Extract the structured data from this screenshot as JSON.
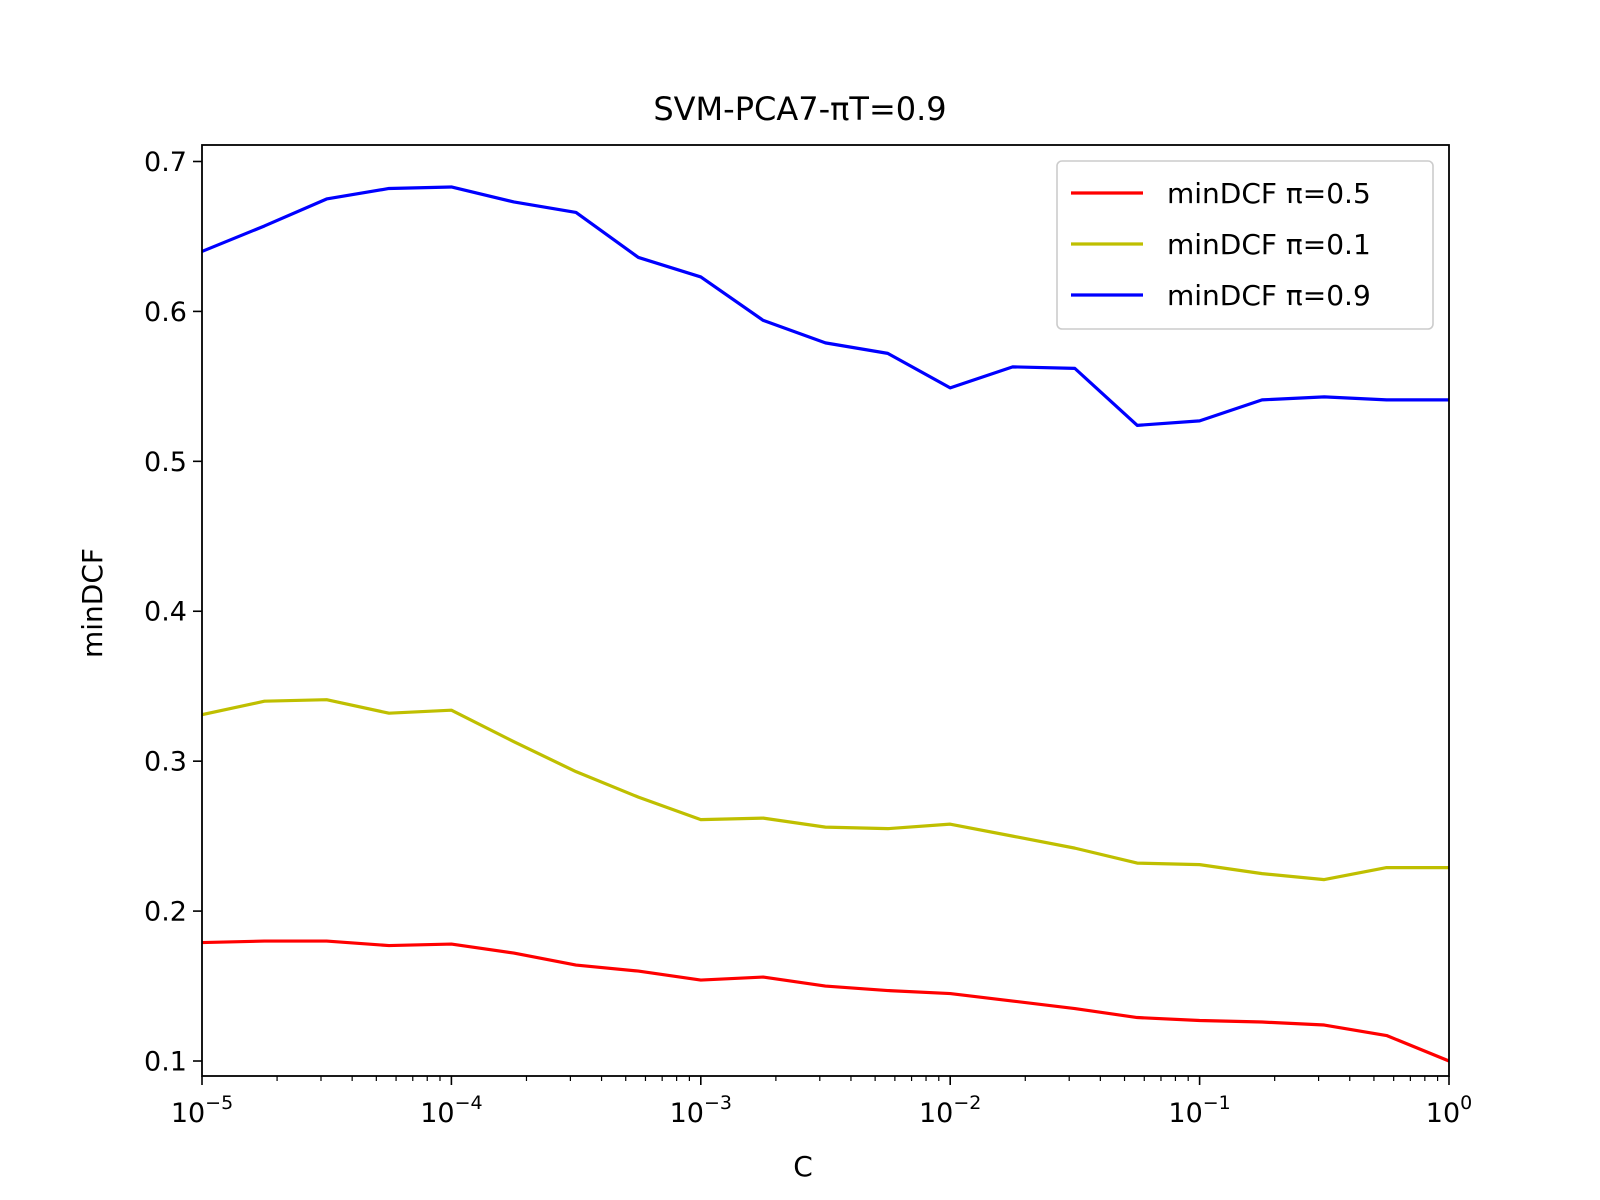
{
  "chart_data": {
    "type": "line",
    "title": "SVM-PCA7-πT=0.9",
    "xlabel": "C",
    "ylabel": "minDCF",
    "xscale": "log",
    "xlim": [
      1e-05,
      1
    ],
    "ylim": [
      0.09,
      0.711
    ],
    "x": [
      1e-05,
      1.78e-05,
      3.16e-05,
      5.62e-05,
      0.0001,
      0.000178,
      0.000316,
      0.000562,
      0.001,
      0.00178,
      0.00316,
      0.00562,
      0.01,
      0.0178,
      0.0316,
      0.0562,
      0.1,
      0.178,
      0.316,
      0.562,
      1
    ],
    "x_tick_labels": [
      {
        "base": "10",
        "exp": "−5",
        "value": 1e-05
      },
      {
        "base": "10",
        "exp": "−4",
        "value": 0.0001
      },
      {
        "base": "10",
        "exp": "−3",
        "value": 0.001
      },
      {
        "base": "10",
        "exp": "−2",
        "value": 0.01
      },
      {
        "base": "10",
        "exp": "−1",
        "value": 0.1
      },
      {
        "base": "10",
        "exp": "0",
        "value": 1
      }
    ],
    "y_ticks": [
      {
        "label": "0.1",
        "value": 0.1
      },
      {
        "label": "0.2",
        "value": 0.2
      },
      {
        "label": "0.3",
        "value": 0.3
      },
      {
        "label": "0.4",
        "value": 0.4
      },
      {
        "label": "0.5",
        "value": 0.5
      },
      {
        "label": "0.6",
        "value": 0.6
      },
      {
        "label": "0.7",
        "value": 0.7
      }
    ],
    "legend_position": "upper right",
    "grid": false,
    "series": [
      {
        "name": "minDCF π=0.5",
        "color": "#ff0000",
        "values": [
          0.179,
          0.18,
          0.18,
          0.177,
          0.178,
          0.172,
          0.164,
          0.16,
          0.154,
          0.156,
          0.15,
          0.147,
          0.145,
          0.14,
          0.135,
          0.129,
          0.127,
          0.126,
          0.124,
          0.117,
          0.1
        ]
      },
      {
        "name": "minDCF π=0.1",
        "color": "#bfbf00",
        "values": [
          0.331,
          0.34,
          0.341,
          0.332,
          0.334,
          0.313,
          0.293,
          0.276,
          0.261,
          0.262,
          0.256,
          0.255,
          0.258,
          0.25,
          0.242,
          0.232,
          0.231,
          0.225,
          0.221,
          0.229,
          0.229
        ]
      },
      {
        "name": "minDCF π=0.9",
        "color": "#0000ff",
        "values": [
          0.64,
          0.657,
          0.675,
          0.682,
          0.683,
          0.673,
          0.666,
          0.636,
          0.623,
          0.594,
          0.579,
          0.572,
          0.549,
          0.563,
          0.562,
          0.524,
          0.527,
          0.541,
          0.543,
          0.541,
          0.541
        ]
      }
    ]
  }
}
